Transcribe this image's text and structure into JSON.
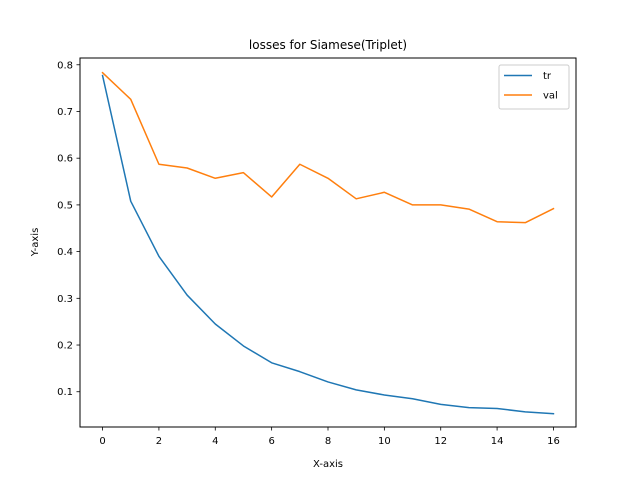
{
  "chart_data": {
    "type": "line",
    "title": "losses for Siamese(Triplet)",
    "xlabel": "X-axis",
    "ylabel": "Y-axis",
    "x": [
      0,
      1,
      2,
      3,
      4,
      5,
      6,
      7,
      8,
      9,
      10,
      11,
      12,
      13,
      14,
      15,
      16
    ],
    "xlim": [
      -0.8,
      16.8
    ],
    "ylim": [
      0.0245,
      0.8145
    ],
    "xticks": [
      "0",
      "2",
      "4",
      "6",
      "8",
      "10",
      "12",
      "14",
      "16"
    ],
    "yticks": [
      "0.1",
      "0.2",
      "0.3",
      "0.4",
      "0.5",
      "0.6",
      "0.7",
      "0.8"
    ],
    "grid": false,
    "legend_position": "top-right",
    "series": [
      {
        "name": "tr",
        "color": "#1f77b4",
        "values": [
          0.777,
          0.508,
          0.39,
          0.307,
          0.245,
          0.198,
          0.162,
          0.143,
          0.121,
          0.104,
          0.093,
          0.085,
          0.073,
          0.066,
          0.064,
          0.057,
          0.053
        ]
      },
      {
        "name": "val",
        "color": "#ff7f0e",
        "values": [
          0.783,
          0.726,
          0.587,
          0.579,
          0.557,
          0.569,
          0.517,
          0.587,
          0.557,
          0.513,
          0.527,
          0.5,
          0.5,
          0.491,
          0.464,
          0.462,
          0.492
        ]
      }
    ]
  }
}
